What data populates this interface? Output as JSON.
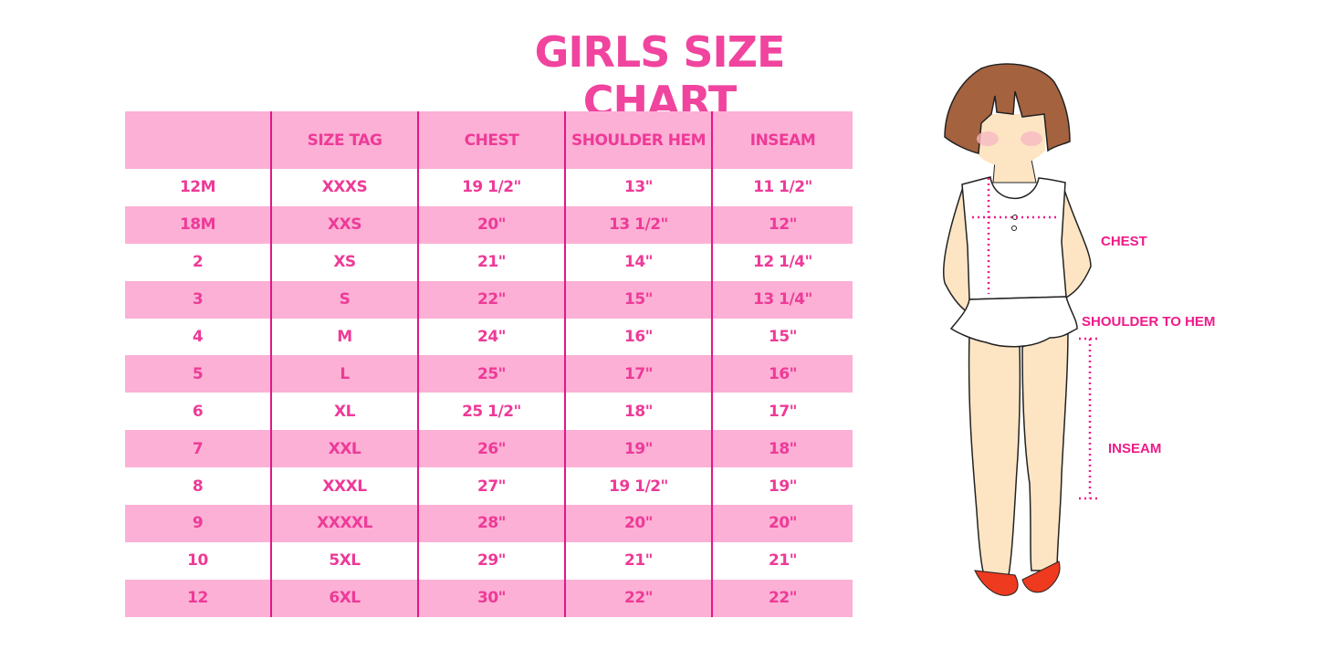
{
  "title": "GIRLS SIZE CHART",
  "table": {
    "headers": [
      "",
      "SIZE TAG",
      "CHEST",
      "SHOULDER HEM",
      "INSEAM"
    ],
    "rows": [
      [
        "12M",
        "XXXS",
        "19 1/2\"",
        "13\"",
        "11 1/2\""
      ],
      [
        "18M",
        "XXS",
        "20\"",
        "13 1/2\"",
        "12\""
      ],
      [
        "2",
        "XS",
        "21\"",
        "14\"",
        "12 1/4\""
      ],
      [
        "3",
        "S",
        "22\"",
        "15\"",
        "13 1/4\""
      ],
      [
        "4",
        "M",
        "24\"",
        "16\"",
        "15\""
      ],
      [
        "5",
        "L",
        "25\"",
        "17\"",
        "16\""
      ],
      [
        "6",
        "XL",
        "25 1/2\"",
        "18\"",
        "17\""
      ],
      [
        "7",
        "XXL",
        "26\"",
        "19\"",
        "18\""
      ],
      [
        "8",
        "XXXL",
        "27\"",
        "19 1/2\"",
        "19\""
      ],
      [
        "9",
        "XXXXL",
        "28\"",
        "20\"",
        "20\""
      ],
      [
        "10",
        "5XL",
        "29\"",
        "21\"",
        "21\""
      ],
      [
        "12",
        "6XL",
        "30\"",
        "22\"",
        "22\""
      ]
    ]
  },
  "figure": {
    "labels": {
      "chest": "CHEST",
      "shoulder_to_hem": "SHOULDER TO HEM",
      "inseam": "INSEAM"
    }
  },
  "colors": {
    "accent": "#ee3a98",
    "row_pink": "#fcb0d5",
    "divider": "#e3168a"
  }
}
